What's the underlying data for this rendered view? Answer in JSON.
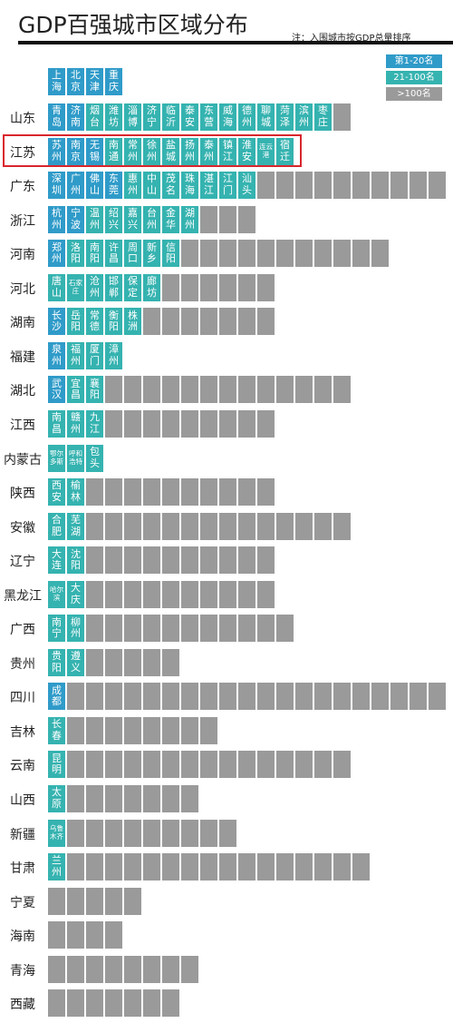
{
  "title": "GDP百强城市区域分布",
  "note": "注：入围城市按GDP总量排序",
  "legend": [
    {
      "label": "第1-20名",
      "color": "#2f9bc9"
    },
    {
      "label": "21-100名",
      "color": "#35b3b0"
    },
    {
      "label": ">100名",
      "color": "#9a9a9a"
    }
  ],
  "municipalities": [
    {
      "name": "上海",
      "tier": 0
    },
    {
      "name": "北京",
      "tier": 0
    },
    {
      "name": "天津",
      "tier": 0
    },
    {
      "name": "重庆",
      "tier": 0
    }
  ],
  "rows": [
    {
      "province": "山东",
      "cities": [
        {
          "name": "青岛",
          "tier": 0
        },
        {
          "name": "济南",
          "tier": 0
        },
        {
          "name": "烟台",
          "tier": 1
        },
        {
          "name": "潍坊",
          "tier": 1
        },
        {
          "name": "淄博",
          "tier": 1
        },
        {
          "name": "济宁",
          "tier": 1
        },
        {
          "name": "临沂",
          "tier": 1
        },
        {
          "name": "泰安",
          "tier": 1
        },
        {
          "name": "东营",
          "tier": 1
        },
        {
          "name": "威海",
          "tier": 1
        },
        {
          "name": "德州",
          "tier": 1
        },
        {
          "name": "聊城",
          "tier": 1
        },
        {
          "name": "菏泽",
          "tier": 1
        },
        {
          "name": "滨州",
          "tier": 1
        },
        {
          "name": "枣庄",
          "tier": 1
        }
      ],
      "others": 1
    },
    {
      "province": "江苏",
      "highlight": true,
      "cities": [
        {
          "name": "苏州",
          "tier": 0
        },
        {
          "name": "南京",
          "tier": 0
        },
        {
          "name": "无锡",
          "tier": 0
        },
        {
          "name": "南通",
          "tier": 1
        },
        {
          "name": "常州",
          "tier": 1
        },
        {
          "name": "徐州",
          "tier": 1
        },
        {
          "name": "盐城",
          "tier": 1
        },
        {
          "name": "扬州",
          "tier": 1
        },
        {
          "name": "泰州",
          "tier": 1
        },
        {
          "name": "镇江",
          "tier": 1
        },
        {
          "name": "淮安",
          "tier": 1
        },
        {
          "name": "连云港",
          "tier": 1
        },
        {
          "name": "宿迁",
          "tier": 1
        }
      ],
      "others": 0
    },
    {
      "province": "广东",
      "cities": [
        {
          "name": "深圳",
          "tier": 0
        },
        {
          "name": "广州",
          "tier": 0
        },
        {
          "name": "佛山",
          "tier": 0
        },
        {
          "name": "东莞",
          "tier": 0
        },
        {
          "name": "惠州",
          "tier": 1
        },
        {
          "name": "中山",
          "tier": 1
        },
        {
          "name": "茂名",
          "tier": 1
        },
        {
          "name": "珠海",
          "tier": 1
        },
        {
          "name": "湛江",
          "tier": 1
        },
        {
          "name": "江门",
          "tier": 1
        },
        {
          "name": "汕头",
          "tier": 1
        }
      ],
      "others": 10
    },
    {
      "province": "浙江",
      "cities": [
        {
          "name": "杭州",
          "tier": 0
        },
        {
          "name": "宁波",
          "tier": 0
        },
        {
          "name": "温州",
          "tier": 1
        },
        {
          "name": "绍兴",
          "tier": 1
        },
        {
          "name": "嘉兴",
          "tier": 1
        },
        {
          "name": "台州",
          "tier": 1
        },
        {
          "name": "金华",
          "tier": 1
        },
        {
          "name": "湖州",
          "tier": 1
        }
      ],
      "others": 3
    },
    {
      "province": "河南",
      "cities": [
        {
          "name": "郑州",
          "tier": 0
        },
        {
          "name": "洛阳",
          "tier": 1
        },
        {
          "name": "南阳",
          "tier": 1
        },
        {
          "name": "许昌",
          "tier": 1
        },
        {
          "name": "周口",
          "tier": 1
        },
        {
          "name": "新乡",
          "tier": 1
        },
        {
          "name": "信阳",
          "tier": 1
        }
      ],
      "others": 11
    },
    {
      "province": "河北",
      "cities": [
        {
          "name": "唐山",
          "tier": 1
        },
        {
          "name": "石家庄",
          "tier": 1
        },
        {
          "name": "沧州",
          "tier": 1
        },
        {
          "name": "邯郸",
          "tier": 1
        },
        {
          "name": "保定",
          "tier": 1
        },
        {
          "name": "廊坊",
          "tier": 1
        }
      ],
      "others": 6
    },
    {
      "province": "湖南",
      "cities": [
        {
          "name": "长沙",
          "tier": 0
        },
        {
          "name": "岳阳",
          "tier": 1
        },
        {
          "name": "常德",
          "tier": 1
        },
        {
          "name": "衡阳",
          "tier": 1
        },
        {
          "name": "株洲",
          "tier": 1
        }
      ],
      "others": 7
    },
    {
      "province": "福建",
      "cities": [
        {
          "name": "泉州",
          "tier": 0
        },
        {
          "name": "福州",
          "tier": 1
        },
        {
          "name": "厦门",
          "tier": 1
        },
        {
          "name": "漳州",
          "tier": 1
        }
      ],
      "others": 0
    },
    {
      "province": "湖北",
      "cities": [
        {
          "name": "武汉",
          "tier": 0
        },
        {
          "name": "宜昌",
          "tier": 1
        },
        {
          "name": "襄阳",
          "tier": 1
        }
      ],
      "others": 13
    },
    {
      "province": "江西",
      "cities": [
        {
          "name": "南昌",
          "tier": 1
        },
        {
          "name": "赣州",
          "tier": 1
        },
        {
          "name": "九江",
          "tier": 1
        }
      ],
      "others": 9
    },
    {
      "province": "内蒙古",
      "cities": [
        {
          "name": "鄂尔多斯",
          "tier": 1
        },
        {
          "name": "呼和浩特",
          "tier": 1
        },
        {
          "name": "包头",
          "tier": 1
        }
      ],
      "others": 0
    },
    {
      "province": "陕西",
      "cities": [
        {
          "name": "西安",
          "tier": 1
        },
        {
          "name": "榆林",
          "tier": 1
        }
      ],
      "others": 10
    },
    {
      "province": "安徽",
      "cities": [
        {
          "name": "合肥",
          "tier": 1
        },
        {
          "name": "芜湖",
          "tier": 1
        }
      ],
      "others": 14
    },
    {
      "province": "辽宁",
      "cities": [
        {
          "name": "大连",
          "tier": 1
        },
        {
          "name": "沈阳",
          "tier": 1
        }
      ],
      "others": 10
    },
    {
      "province": "黑龙江",
      "cities": [
        {
          "name": "哈尔滨",
          "tier": 1
        },
        {
          "name": "大庆",
          "tier": 1
        }
      ],
      "others": 10
    },
    {
      "province": "广西",
      "cities": [
        {
          "name": "南宁",
          "tier": 1
        },
        {
          "name": "柳州",
          "tier": 1
        }
      ],
      "others": 11
    },
    {
      "province": "贵州",
      "cities": [
        {
          "name": "贵阳",
          "tier": 1
        },
        {
          "name": "遵义",
          "tier": 1
        }
      ],
      "others": 5
    },
    {
      "province": "四川",
      "cities": [
        {
          "name": "成都",
          "tier": 0
        }
      ],
      "others": 20
    },
    {
      "province": "吉林",
      "cities": [
        {
          "name": "长春",
          "tier": 1
        }
      ],
      "others": 8
    },
    {
      "province": "云南",
      "cities": [
        {
          "name": "昆明",
          "tier": 1
        }
      ],
      "others": 15
    },
    {
      "province": "山西",
      "cities": [
        {
          "name": "太原",
          "tier": 1
        }
      ],
      "others": 7
    },
    {
      "province": "新疆",
      "cities": [
        {
          "name": "乌鲁木齐",
          "tier": 1
        }
      ],
      "others": 9
    },
    {
      "province": "甘肃",
      "cities": [
        {
          "name": "兰州",
          "tier": 1
        }
      ],
      "others": 16
    },
    {
      "province": "宁夏",
      "cities": [],
      "others": 5
    },
    {
      "province": "海南",
      "cities": [],
      "others": 4
    },
    {
      "province": "青海",
      "cities": [],
      "others": 8
    },
    {
      "province": "西藏",
      "cities": [],
      "others": 7
    }
  ]
}
